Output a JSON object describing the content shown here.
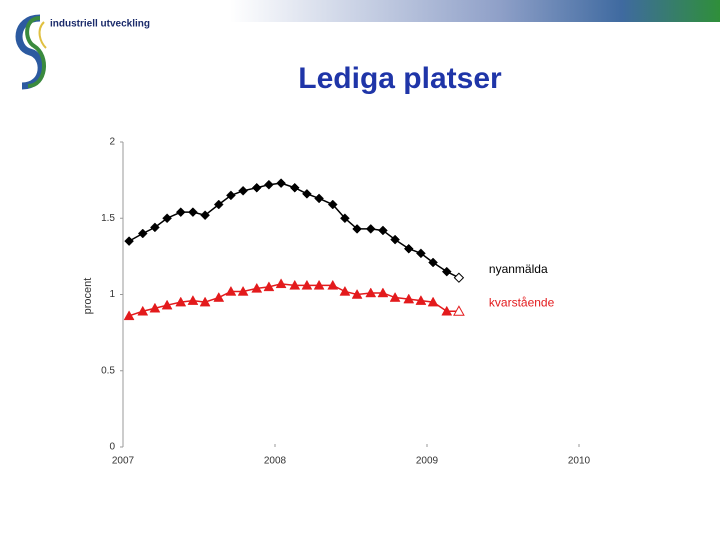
{
  "logo": {
    "text": "industriell utveckling"
  },
  "chart_data": {
    "type": "line",
    "title": "Lediga platser",
    "ylabel": "procent",
    "x": [
      2007.04,
      2007.13,
      2007.21,
      2007.29,
      2007.38,
      2007.46,
      2007.54,
      2007.63,
      2007.71,
      2007.79,
      2007.88,
      2007.96,
      2008.04,
      2008.13,
      2008.21,
      2008.29,
      2008.38,
      2008.46,
      2008.54,
      2008.63,
      2008.71,
      2008.79,
      2008.88,
      2008.96,
      2009.04,
      2009.13,
      2009.21
    ],
    "series": [
      {
        "name": "nyanmälda",
        "color": "#000000",
        "marker": "diamond",
        "values": [
          1.35,
          1.4,
          1.44,
          1.5,
          1.54,
          1.54,
          1.52,
          1.59,
          1.65,
          1.68,
          1.7,
          1.72,
          1.73,
          1.7,
          1.66,
          1.63,
          1.59,
          1.5,
          1.43,
          1.43,
          1.42,
          1.36,
          1.3,
          1.27,
          1.21,
          1.15,
          1.11
        ]
      },
      {
        "name": "kvarstående",
        "color": "#e31a1c",
        "marker": "triangle",
        "values": [
          0.86,
          0.89,
          0.91,
          0.93,
          0.95,
          0.96,
          0.95,
          0.98,
          1.02,
          1.02,
          1.04,
          1.05,
          1.07,
          1.06,
          1.06,
          1.06,
          1.06,
          1.02,
          1.0,
          1.01,
          1.01,
          0.98,
          0.97,
          0.96,
          0.95,
          0.89,
          0.89
        ]
      }
    ],
    "open_last_marker": true,
    "xlim": [
      2007,
      2010
    ],
    "xticks": [
      2007,
      2008,
      2009,
      2010
    ],
    "ylim": [
      0,
      2
    ],
    "yticks": [
      0,
      0.5,
      1,
      1.5,
      2
    ]
  }
}
